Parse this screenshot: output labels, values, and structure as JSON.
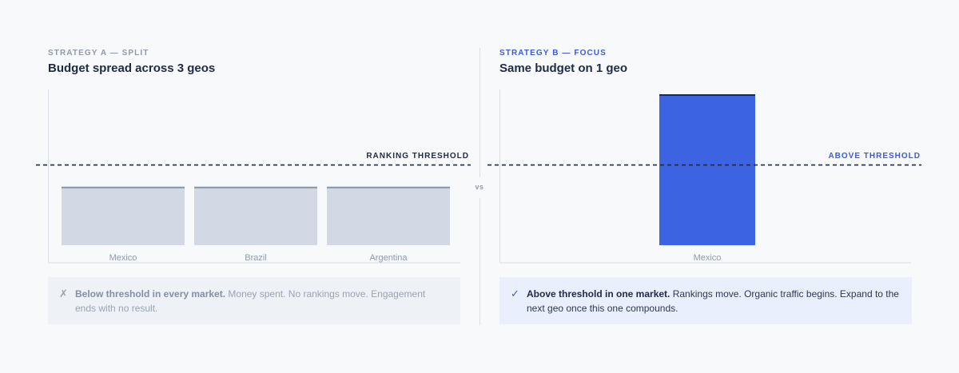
{
  "strategy_a": {
    "eyebrow": "STRATEGY A — SPLIT",
    "heading": "Budget spread across 3 geos",
    "threshold_label": "RANKING THRESHOLD",
    "note_icon": "x-mark-icon",
    "note_bold": "Below threshold in every market.",
    "note_rest": " Money spent. No rankings move. Engagement ends with no result."
  },
  "strategy_b": {
    "eyebrow": "STRATEGY B — FOCUS",
    "heading": "Same budget on 1 geo",
    "threshold_label": "ABOVE THRESHOLD",
    "note_icon": "check-mark-icon",
    "note_bold": "Above threshold in one market.",
    "note_rest": " Rankings move. Organic traffic begins. Expand to the next geo once this one compounds."
  },
  "vs_label": "vs",
  "colors": {
    "split_bar": "#d2d9e4",
    "split_bar_top": "#8494aa",
    "focus_bar": "#3b63e2",
    "focus_bar_top": "#1f2a44",
    "threshold": "#1f2a44",
    "accent": "#3b5bdb"
  },
  "chart_data": [
    {
      "type": "bar",
      "categories": [
        "Mexico",
        "Brazil",
        "Argentina"
      ],
      "values": [
        0.62,
        0.62,
        0.62
      ],
      "threshold": 0.85,
      "threshold_label": "RANKING THRESHOLD",
      "ylim": [
        0,
        1.6
      ]
    },
    {
      "type": "bar",
      "categories": [
        "Mexico"
      ],
      "values": [
        1.6
      ],
      "threshold": 0.85,
      "threshold_label": "ABOVE THRESHOLD",
      "ylim": [
        0,
        1.6
      ]
    }
  ]
}
